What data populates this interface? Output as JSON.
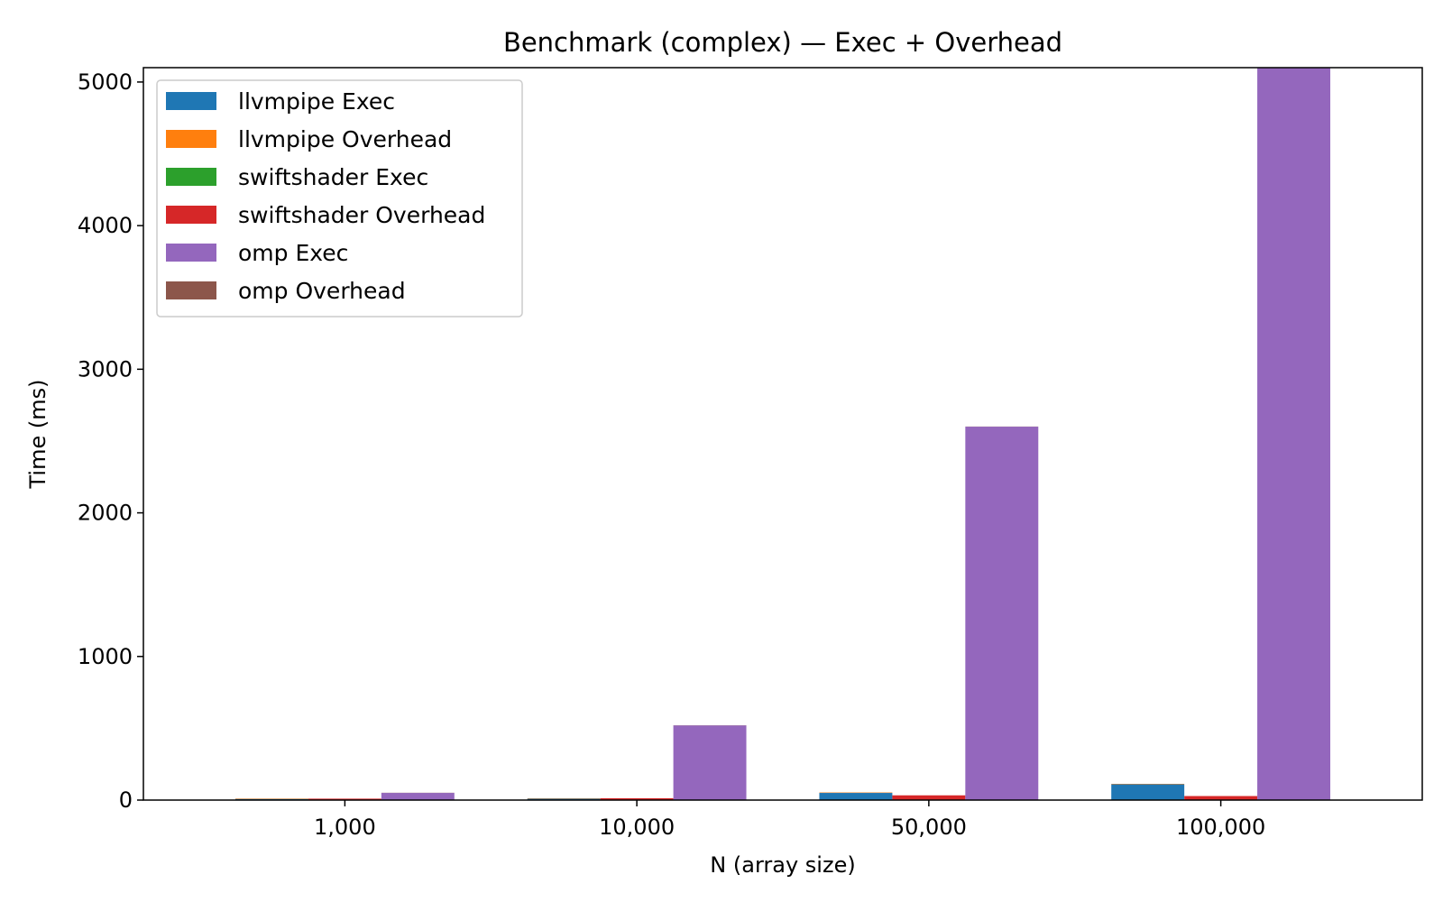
{
  "chart_data": {
    "type": "bar",
    "title": "Benchmark (complex) — Exec + Overhead",
    "xlabel": "N (array size)",
    "ylabel": "Time (ms)",
    "categories": [
      "1,000",
      "10,000",
      "50,000",
      "100,000"
    ],
    "ylim": [
      0,
      5100
    ],
    "yticks": [
      "0",
      "1000",
      "2000",
      "3000",
      "4000",
      "5000"
    ],
    "grid": false,
    "legend_position": "top-left",
    "series": [
      {
        "name": "llvmpipe Exec",
        "color": "#1f77b4",
        "values": [
          8,
          10,
          50,
          110
        ]
      },
      {
        "name": "llvmpipe Overhead",
        "color": "#ff7f0e",
        "values": [
          3,
          3,
          3,
          3
        ]
      },
      {
        "name": "swiftshader Exec",
        "color": "#2ca02c",
        "values": [
          2,
          3,
          3,
          3
        ]
      },
      {
        "name": "swiftshader Overhead",
        "color": "#d62728",
        "values": [
          8,
          10,
          30,
          25
        ]
      },
      {
        "name": "omp Exec",
        "color": "#9467bd",
        "values": [
          50,
          520,
          2600,
          5100
        ]
      },
      {
        "name": "omp Overhead",
        "color": "#8c564b",
        "values": [
          1,
          1,
          1,
          1
        ]
      }
    ],
    "bar_groups": [
      {
        "stack": [
          "llvmpipe Exec",
          "llvmpipe Overhead"
        ]
      },
      {
        "stack": [
          "swiftshader Exec",
          "swiftshader Overhead"
        ]
      },
      {
        "stack": [
          "omp Exec",
          "omp Overhead"
        ]
      }
    ]
  }
}
